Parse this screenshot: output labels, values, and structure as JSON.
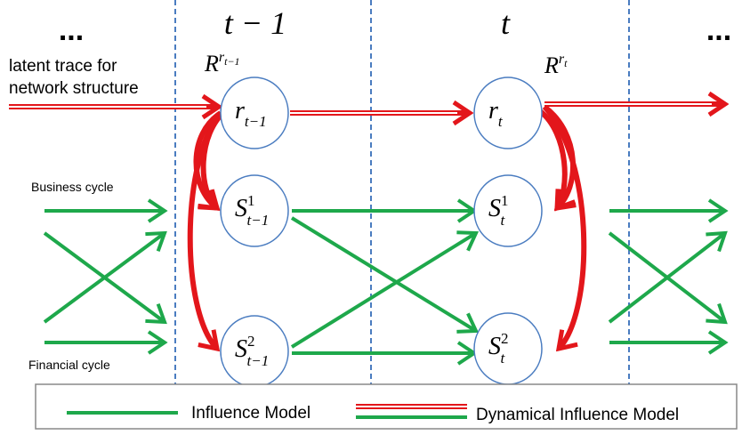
{
  "headings": [
    "...",
    "t − 1",
    "t",
    "..."
  ],
  "latent_trace": [
    "latent trace for",
    "network structure"
  ],
  "business_cycle": "Business cycle",
  "financial_cycle": "Financial cycle",
  "reward_labels": [
    {
      "base": "R",
      "sup": "r",
      "sup_sub": "t−1"
    },
    {
      "base": "R",
      "sup": "r",
      "sup_sub": "t"
    }
  ],
  "nodes": [
    {
      "base": "r",
      "sub": "t−1"
    },
    {
      "base": "S",
      "sup": "1",
      "sub": "t−1"
    },
    {
      "base": "S",
      "sup": "2",
      "sub": "t−1"
    },
    {
      "base": "r",
      "sub": "t"
    },
    {
      "base": "S",
      "sup": "1",
      "sub": "t"
    },
    {
      "base": "S",
      "sup": "2",
      "sub": "t"
    }
  ],
  "legend": [
    "Influence Model",
    "Dynamical Influence Model"
  ]
}
